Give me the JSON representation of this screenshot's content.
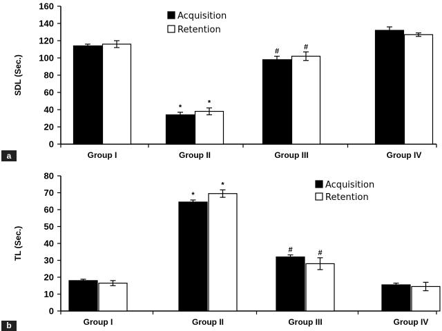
{
  "chart_data": [
    {
      "type": "bar",
      "panel_label": "a",
      "ylabel": "SDL (Sec.)",
      "categories": [
        "Group I",
        "Group II",
        "Group III",
        "Group IV"
      ],
      "ylim": [
        0,
        160
      ],
      "yticks": [
        0,
        20,
        40,
        60,
        80,
        100,
        120,
        140,
        160
      ],
      "legend_position": "top-center",
      "series": [
        {
          "name": "Acquisition",
          "fill": "#000000",
          "values": [
            114,
            34,
            98,
            132
          ],
          "errors": [
            2,
            3,
            4,
            4
          ],
          "markers": [
            "",
            "*",
            "#",
            ""
          ]
        },
        {
          "name": "Retention",
          "fill": "#ffffff",
          "values": [
            116,
            38,
            102,
            127
          ],
          "errors": [
            4,
            4,
            5,
            2
          ],
          "markers": [
            "",
            "*",
            "#",
            ""
          ]
        }
      ]
    },
    {
      "type": "bar",
      "panel_label": "b",
      "ylabel": "TL (Sec.)",
      "categories": [
        "Group I",
        "Group II",
        "Group III",
        "Group IV"
      ],
      "ylim": [
        0,
        80
      ],
      "yticks": [
        0,
        10,
        20,
        30,
        40,
        50,
        60,
        70,
        80
      ],
      "legend_position": "top-right",
      "series": [
        {
          "name": "Acquisition",
          "fill": "#000000",
          "values": [
            18,
            64.5,
            32,
            15.5
          ],
          "errors": [
            0.8,
            1.2,
            1.2,
            1
          ],
          "markers": [
            "",
            "*",
            "#",
            ""
          ]
        },
        {
          "name": "Retention",
          "fill": "#ffffff",
          "values": [
            16.5,
            69.5,
            28,
            14.5
          ],
          "errors": [
            1.5,
            2.2,
            3.5,
            2.5
          ],
          "markers": [
            "",
            "*",
            "#",
            ""
          ]
        }
      ]
    }
  ]
}
